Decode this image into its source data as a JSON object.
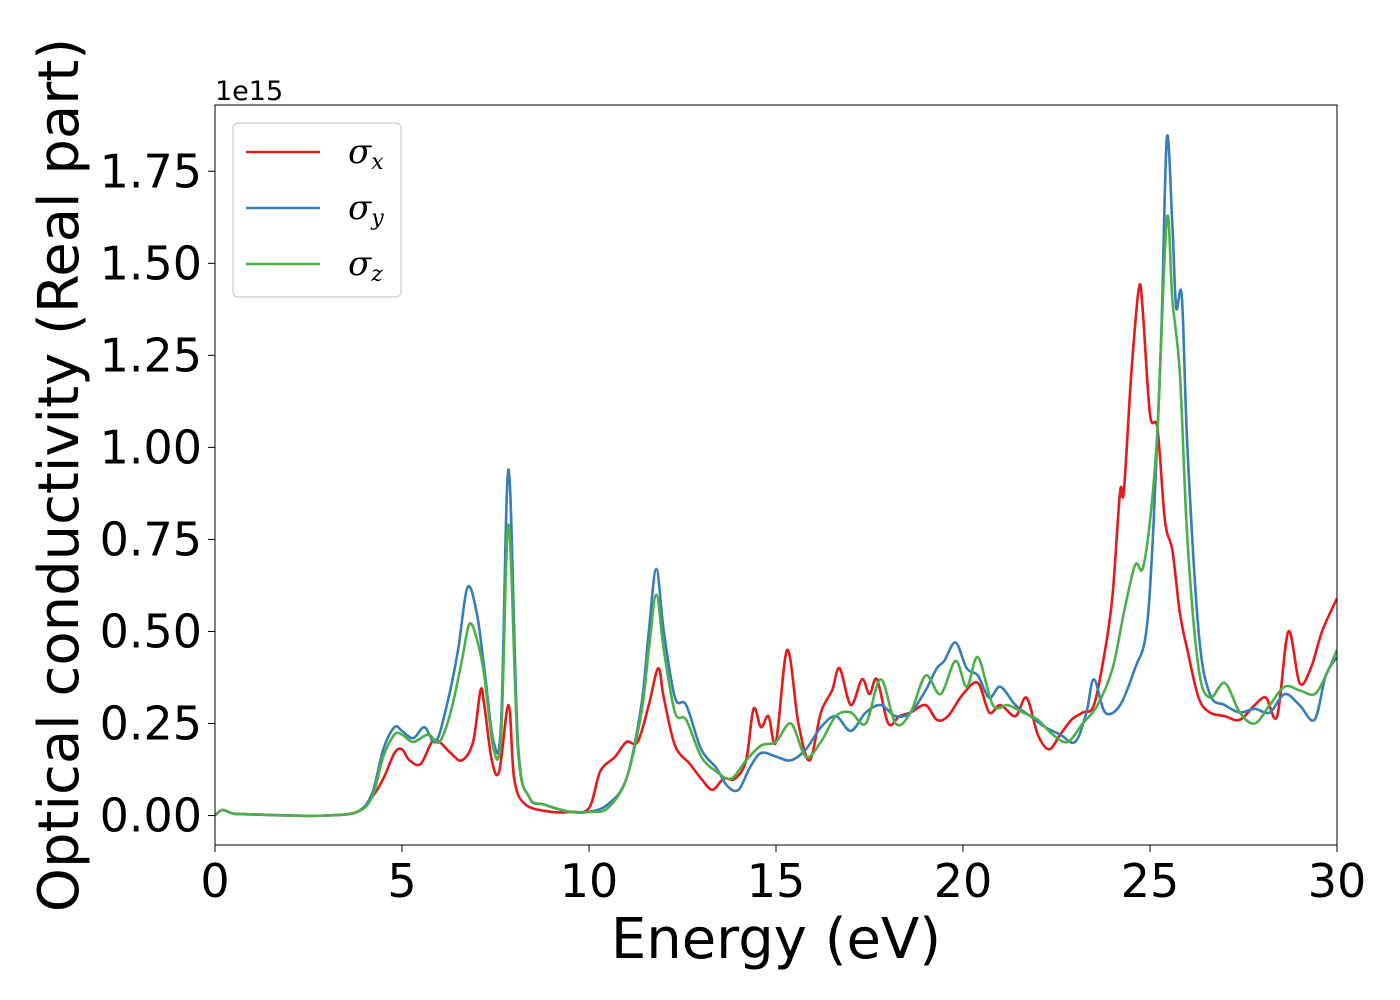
{
  "chart_data": {
    "type": "line",
    "title": "",
    "xlabel": "Energy (eV)",
    "ylabel": "Optical conductivity (Real part)",
    "y_offset_label": "1e15",
    "y_scale": 1000000000000000.0,
    "xlim": [
      0,
      30
    ],
    "ylim": [
      -0.08,
      1.93
    ],
    "x_ticks": [
      0,
      5,
      10,
      15,
      20,
      25,
      30
    ],
    "x_tick_labels": [
      "0",
      "5",
      "10",
      "15",
      "20",
      "25",
      "30"
    ],
    "y_ticks": [
      0.0,
      0.25,
      0.5,
      0.75,
      1.0,
      1.25,
      1.5,
      1.75
    ],
    "y_tick_labels": [
      "0.00",
      "0.25",
      "0.50",
      "0.75",
      "1.00",
      "1.25",
      "1.50",
      "1.75"
    ],
    "grid": false,
    "legend": {
      "position": "top-left",
      "entries": [
        {
          "symbol": "σ",
          "sub": "x"
        },
        {
          "symbol": "σ",
          "sub": "y"
        },
        {
          "symbol": "σ",
          "sub": "z"
        }
      ]
    },
    "series": [
      {
        "color": "#e41a1c",
        "x": [
          0,
          0.2,
          0.5,
          1,
          2,
          3,
          3.8,
          4.2,
          4.5,
          4.8,
          5.0,
          5.2,
          5.5,
          5.8,
          6.0,
          6.3,
          6.6,
          6.9,
          7.1,
          7.2,
          7.4,
          7.6,
          7.85,
          8.0,
          8.3,
          9.0,
          9.5,
          10.0,
          10.3,
          10.7,
          11.0,
          11.3,
          11.6,
          11.85,
          12.0,
          12.3,
          12.7,
          13.0,
          13.3,
          13.6,
          13.9,
          14.2,
          14.4,
          14.6,
          14.8,
          15.0,
          15.3,
          15.6,
          15.9,
          16.2,
          16.5,
          16.7,
          17.0,
          17.3,
          17.5,
          17.7,
          18.0,
          18.3,
          18.6,
          19.0,
          19.3,
          19.6,
          20.0,
          20.4,
          20.7,
          21.0,
          21.4,
          21.7,
          22.0,
          22.3,
          22.6,
          22.9,
          23.2,
          23.5,
          23.8,
          24.0,
          24.2,
          24.3,
          24.5,
          24.7,
          24.8,
          25.0,
          25.2,
          25.4,
          25.6,
          25.8,
          26.0,
          26.3,
          26.6,
          27.0,
          27.4,
          27.8,
          28.1,
          28.4,
          28.7,
          29.0,
          29.3,
          29.6,
          30.0
        ],
        "y": [
          0.0,
          0.015,
          0.005,
          0.003,
          0.0,
          0.0,
          0.01,
          0.05,
          0.1,
          0.17,
          0.18,
          0.15,
          0.14,
          0.2,
          0.2,
          0.17,
          0.15,
          0.2,
          0.34,
          0.3,
          0.15,
          0.12,
          0.3,
          0.1,
          0.03,
          0.01,
          0.01,
          0.02,
          0.12,
          0.16,
          0.2,
          0.2,
          0.3,
          0.4,
          0.32,
          0.19,
          0.14,
          0.1,
          0.07,
          0.1,
          0.1,
          0.15,
          0.29,
          0.24,
          0.27,
          0.2,
          0.45,
          0.25,
          0.15,
          0.28,
          0.34,
          0.4,
          0.3,
          0.37,
          0.33,
          0.37,
          0.25,
          0.27,
          0.28,
          0.3,
          0.26,
          0.27,
          0.33,
          0.36,
          0.28,
          0.3,
          0.27,
          0.32,
          0.22,
          0.18,
          0.22,
          0.26,
          0.28,
          0.3,
          0.45,
          0.6,
          0.88,
          0.88,
          1.2,
          1.43,
          1.38,
          1.09,
          1.05,
          0.8,
          0.72,
          0.55,
          0.45,
          0.32,
          0.28,
          0.27,
          0.26,
          0.3,
          0.32,
          0.27,
          0.5,
          0.36,
          0.4,
          0.5,
          0.59
        ]
      },
      {
        "color": "#377eb8",
        "x": [
          0,
          0.2,
          0.5,
          1,
          2,
          3,
          3.8,
          4.2,
          4.5,
          4.8,
          5.0,
          5.3,
          5.6,
          5.9,
          6.2,
          6.5,
          6.75,
          7.0,
          7.2,
          7.45,
          7.65,
          7.85,
          8.1,
          8.4,
          8.8,
          9.5,
          10.0,
          10.5,
          11.0,
          11.4,
          11.6,
          11.8,
          12.0,
          12.3,
          12.6,
          13.0,
          13.4,
          13.7,
          14.0,
          14.3,
          14.6,
          15.0,
          15.4,
          15.8,
          16.2,
          16.6,
          17.0,
          17.4,
          17.8,
          18.2,
          18.6,
          19.0,
          19.3,
          19.5,
          19.8,
          20.1,
          20.4,
          20.7,
          21.0,
          21.4,
          21.8,
          22.2,
          22.6,
          23.0,
          23.3,
          23.5,
          23.8,
          24.2,
          24.6,
          24.9,
          25.1,
          25.3,
          25.45,
          25.6,
          25.7,
          25.85,
          26.0,
          26.3,
          26.6,
          27.0,
          27.4,
          27.8,
          28.2,
          28.6,
          29.0,
          29.4,
          29.7,
          30.0
        ],
        "y": [
          0.0,
          0.015,
          0.005,
          0.003,
          0.0,
          0.0,
          0.01,
          0.06,
          0.18,
          0.24,
          0.23,
          0.21,
          0.24,
          0.2,
          0.3,
          0.45,
          0.62,
          0.55,
          0.4,
          0.2,
          0.25,
          0.94,
          0.2,
          0.05,
          0.03,
          0.01,
          0.01,
          0.03,
          0.1,
          0.3,
          0.5,
          0.67,
          0.5,
          0.32,
          0.3,
          0.18,
          0.13,
          0.08,
          0.07,
          0.13,
          0.17,
          0.16,
          0.15,
          0.18,
          0.24,
          0.27,
          0.23,
          0.28,
          0.3,
          0.27,
          0.28,
          0.34,
          0.4,
          0.42,
          0.47,
          0.4,
          0.38,
          0.32,
          0.35,
          0.3,
          0.27,
          0.24,
          0.22,
          0.2,
          0.28,
          0.37,
          0.28,
          0.3,
          0.4,
          0.5,
          0.8,
          1.3,
          1.84,
          1.6,
          1.38,
          1.41,
          1.0,
          0.5,
          0.33,
          0.3,
          0.28,
          0.29,
          0.28,
          0.33,
          0.3,
          0.26,
          0.38,
          0.43
        ]
      },
      {
        "color": "#4daf4a",
        "x": [
          0,
          0.2,
          0.5,
          1,
          2,
          3,
          3.8,
          4.2,
          4.5,
          4.8,
          5.0,
          5.3,
          5.7,
          6.0,
          6.3,
          6.6,
          6.8,
          7.0,
          7.2,
          7.45,
          7.65,
          7.85,
          8.1,
          8.4,
          8.8,
          9.5,
          10.0,
          10.5,
          11.0,
          11.4,
          11.6,
          11.8,
          12.0,
          12.3,
          12.6,
          13.0,
          13.4,
          13.8,
          14.2,
          14.6,
          15.0,
          15.4,
          15.8,
          16.2,
          16.6,
          17.0,
          17.4,
          17.8,
          18.2,
          18.6,
          19.0,
          19.4,
          19.8,
          20.1,
          20.4,
          20.8,
          21.2,
          21.6,
          22.0,
          22.4,
          22.8,
          23.2,
          23.6,
          24.0,
          24.3,
          24.6,
          24.8,
          25.0,
          25.2,
          25.45,
          25.6,
          25.8,
          26.0,
          26.3,
          26.6,
          27.0,
          27.4,
          27.8,
          28.2,
          28.6,
          29.0,
          29.4,
          29.7,
          30.0
        ],
        "y": [
          0.0,
          0.015,
          0.005,
          0.003,
          0.0,
          0.0,
          0.01,
          0.05,
          0.16,
          0.22,
          0.22,
          0.2,
          0.22,
          0.2,
          0.28,
          0.42,
          0.52,
          0.48,
          0.38,
          0.18,
          0.22,
          0.79,
          0.18,
          0.05,
          0.03,
          0.01,
          0.01,
          0.02,
          0.1,
          0.28,
          0.45,
          0.6,
          0.45,
          0.28,
          0.26,
          0.16,
          0.12,
          0.1,
          0.15,
          0.19,
          0.2,
          0.25,
          0.16,
          0.2,
          0.27,
          0.28,
          0.25,
          0.37,
          0.25,
          0.28,
          0.38,
          0.33,
          0.42,
          0.35,
          0.43,
          0.3,
          0.3,
          0.28,
          0.26,
          0.22,
          0.2,
          0.25,
          0.3,
          0.4,
          0.55,
          0.68,
          0.67,
          0.8,
          1.05,
          1.62,
          1.4,
          1.2,
          0.75,
          0.4,
          0.32,
          0.36,
          0.28,
          0.25,
          0.3,
          0.35,
          0.34,
          0.33,
          0.38,
          0.45
        ]
      }
    ]
  }
}
